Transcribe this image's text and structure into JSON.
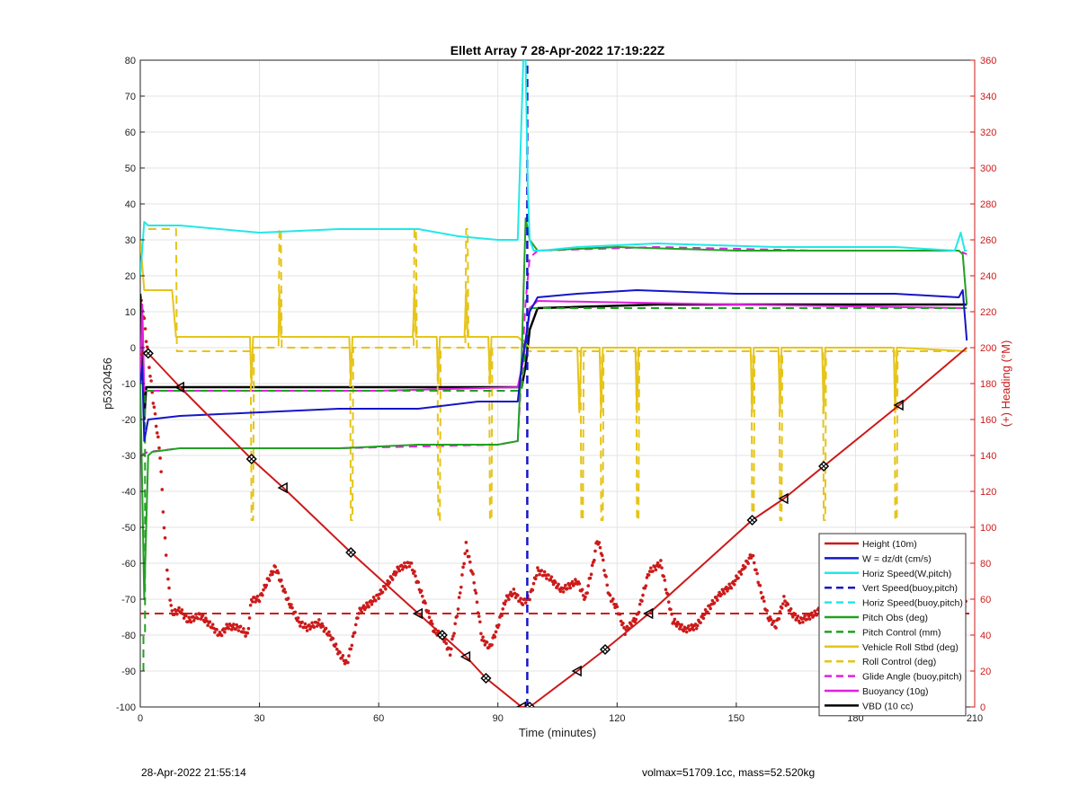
{
  "footer": {
    "timestamp": "28-Apr-2022 21:55:14",
    "summary": "volmax=51709.1cc, mass=52.520kg"
  },
  "chart_data": {
    "type": "line",
    "title": "Ellett Array 7 28-Apr-2022 17:19:22Z",
    "xlabel": "Time (minutes)",
    "ylabel": "p5320456",
    "ylabel_right": "(+) Heading (°M)",
    "xlim": [
      0,
      210
    ],
    "ylim": [
      -100,
      80
    ],
    "ylim_right": [
      0,
      360
    ],
    "xticks": [
      "0",
      "30",
      "60",
      "90",
      "120",
      "150",
      "180",
      "210"
    ],
    "yticks": [
      "-100",
      "-90",
      "-80",
      "-70",
      "-60",
      "-50",
      "-40",
      "-30",
      "-20",
      "-10",
      "0",
      "10",
      "20",
      "30",
      "40",
      "50",
      "60",
      "70",
      "80"
    ],
    "yticks_right": [
      "0",
      "20",
      "40",
      "60",
      "80",
      "100",
      "120",
      "140",
      "160",
      "180",
      "200",
      "220",
      "240",
      "260",
      "280",
      "300",
      "320",
      "340",
      "360"
    ],
    "grid": true,
    "legend_position": "bottom-right",
    "series": [
      {
        "name": "Height (10m)",
        "color": "#cc1a1a",
        "style": "solid",
        "width": 2,
        "x": [
          0,
          1.5,
          10,
          28,
          36,
          53,
          70,
          76,
          82,
          87,
          96,
          98,
          110,
          117,
          128,
          154,
          162,
          172,
          191,
          208
        ],
        "y": [
          -2,
          -1,
          -11,
          -31,
          -39,
          -57,
          -74,
          -80,
          -86,
          -92,
          -100,
          -100,
          -90,
          -84,
          -74,
          -48,
          -42,
          -33,
          -16,
          0
        ]
      },
      {
        "name": "W = dz/dt (cm/s)",
        "color": "#1515c8",
        "style": "solid",
        "width": 2,
        "x": [
          0,
          0.5,
          1,
          2,
          10,
          30,
          50,
          70,
          85,
          95,
          96,
          98,
          100,
          110,
          125,
          150,
          170,
          190,
          206,
          207,
          208
        ],
        "y": [
          -10,
          -5,
          -26,
          -20,
          -19,
          -18,
          -17,
          -17,
          -15,
          -15,
          -5,
          10,
          14,
          15,
          16,
          15,
          15,
          15,
          14,
          16,
          2
        ]
      },
      {
        "name": "Horiz Speed(W,pitch)",
        "color": "#22e8e8",
        "style": "solid",
        "width": 2,
        "x": [
          0,
          1,
          2,
          10,
          30,
          50,
          70,
          80,
          90,
          95,
          96.4,
          97,
          97.5,
          98,
          99,
          101,
          110,
          130,
          160,
          190,
          205,
          206.5,
          207.5,
          208
        ],
        "y": [
          20,
          35,
          34,
          34,
          32,
          33,
          33,
          31,
          30,
          30,
          80,
          80,
          45,
          30,
          27,
          27,
          28,
          29,
          28,
          28,
          27,
          32,
          27,
          27
        ]
      },
      {
        "name": "Vert Speed(buoy,pitch)",
        "color": "#1515c8",
        "style": "dashed",
        "width": 2.5,
        "x": [
          97.4,
          97.4
        ],
        "y": [
          -100,
          79
        ]
      },
      {
        "name": "Horiz Speed(buoy,pitch)",
        "color": "#22e8e8",
        "style": "dashed",
        "width": 2,
        "x": [],
        "y": []
      },
      {
        "name": "Pitch Obs (deg)",
        "color": "#22a022",
        "style": "solid",
        "width": 2,
        "x": [
          0,
          1,
          2,
          3,
          10,
          30,
          50,
          70,
          90,
          95,
          96,
          97,
          98,
          100,
          120,
          150,
          180,
          206,
          207,
          208
        ],
        "y": [
          -10,
          -70,
          -30,
          -29,
          -28,
          -28,
          -28,
          -27,
          -27,
          -26,
          -2,
          36,
          30,
          27,
          28,
          27,
          27,
          27,
          26,
          12
        ]
      },
      {
        "name": "Pitch Control (mm)",
        "color": "#22a022",
        "style": "dashed",
        "width": 2,
        "x": [
          0.8,
          0.8,
          1.2,
          1.2,
          10,
          90,
          96,
          97,
          98,
          100,
          208
        ],
        "y": [
          -90,
          -80,
          -80,
          -12,
          -12,
          -12,
          -12,
          0,
          11,
          11,
          11
        ]
      },
      {
        "name": "Vehicle Roll Stbd (deg)",
        "color": "#e6c419",
        "style": "solid",
        "width": 2,
        "x": [
          0,
          1,
          2,
          8,
          9,
          27.6,
          28,
          28.4,
          29,
          34.8,
          35,
          35.4,
          36,
          52.6,
          53,
          53.4,
          54,
          68.6,
          69,
          69.4,
          70,
          74.6,
          75,
          75.4,
          76,
          81.6,
          82,
          82.4,
          83,
          87.6,
          88,
          88.4,
          89,
          95,
          98,
          110,
          110.5,
          111,
          111.5,
          112,
          115.6,
          116,
          116.4,
          117,
          124.6,
          125,
          125.4,
          126,
          153.6,
          154,
          154.4,
          155,
          160.6,
          161,
          161.4,
          162,
          171.6,
          172,
          172.4,
          173,
          189.6,
          190,
          190.4,
          191,
          208
        ],
        "y": [
          30,
          16,
          16,
          16,
          3,
          3,
          -10,
          3,
          3,
          3,
          16,
          3,
          3,
          3,
          -10,
          3,
          3,
          3,
          16,
          3,
          3,
          3,
          -10,
          3,
          3,
          3,
          16,
          3,
          3,
          3,
          -10,
          3,
          3,
          3,
          0,
          0,
          -18,
          0,
          0,
          0,
          0,
          -18,
          0,
          0,
          0,
          -18,
          0,
          0,
          0,
          -18,
          0,
          0,
          0,
          -18,
          0,
          0,
          0,
          -18,
          0,
          0,
          0,
          -18,
          0,
          0,
          -1
        ]
      },
      {
        "name": "Roll Control (deg)",
        "color": "#e6c419",
        "style": "dashed",
        "width": 2,
        "x": [
          2,
          9,
          9.2,
          27.8,
          28,
          28.4,
          28.6,
          34.8,
          35,
          35.4,
          35.6,
          52.8,
          53,
          53.4,
          53.6,
          68.8,
          69,
          69.4,
          69.6,
          74.8,
          75,
          75.4,
          75.6,
          81.8,
          82,
          82.4,
          82.6,
          87.8,
          88,
          88.4,
          88.6,
          96,
          98,
          110.8,
          111,
          111.4,
          111.6,
          115.8,
          116,
          116.4,
          116.6,
          124.8,
          125,
          125.4,
          125.6,
          153.8,
          154,
          154.4,
          154.6,
          160.8,
          161,
          161.4,
          161.6,
          171.8,
          172,
          172.4,
          172.6,
          189.8,
          190,
          190.4,
          190.6,
          208
        ],
        "y": [
          33,
          33,
          -1,
          -1,
          -48,
          -48,
          0,
          0,
          33,
          33,
          0,
          0,
          -48,
          -48,
          0,
          0,
          33,
          33,
          0,
          0,
          -48,
          -48,
          0,
          0,
          33,
          33,
          0,
          0,
          -48,
          -48,
          0,
          0,
          -1,
          -1,
          -48,
          -48,
          -1,
          -1,
          -48,
          -48,
          -1,
          -1,
          -48,
          -48,
          -1,
          -1,
          -48,
          -48,
          -1,
          -1,
          -48,
          -48,
          -1,
          -1,
          -48,
          -48,
          -1,
          -1,
          -48,
          -48,
          -1,
          -1
        ]
      },
      {
        "name": "Glide Angle (buoy,pitch)",
        "color": "#e020e0",
        "style": "dashed",
        "width": 2,
        "x": [
          0,
          2,
          10,
          50,
          90,
          95,
          97,
          98,
          100,
          130,
          170,
          206,
          208
        ],
        "y": [
          -30,
          -29,
          -28,
          -28,
          -27,
          -26,
          13,
          25,
          27,
          28,
          27,
          27,
          26
        ]
      },
      {
        "name": "Buoyancy (10g)",
        "color": "#e020e0",
        "style": "solid",
        "width": 2,
        "x": [
          0,
          0.5,
          1,
          2,
          60,
          95,
          96.5,
          98,
          100,
          150,
          208
        ],
        "y": [
          -10,
          12,
          -12,
          -12,
          -12,
          -11,
          -3,
          11,
          13,
          12,
          11
        ]
      },
      {
        "name": "VBD (10 cc)",
        "color": "#000000",
        "style": "solid",
        "width": 2.5,
        "x": [
          0,
          1,
          1.5,
          2,
          95,
          96,
          97,
          98,
          100,
          130,
          208
        ],
        "y": [
          15,
          -20,
          -11,
          -11,
          -11,
          -11,
          -5,
          5,
          11,
          12,
          12
        ]
      }
    ],
    "heading": {
      "axis": "right",
      "color": "#cc1a1a",
      "mean": 52,
      "points_x": [
        0,
        1,
        2,
        3,
        5,
        6,
        7,
        8,
        10,
        12,
        15,
        18,
        20,
        22,
        25,
        27,
        28,
        30,
        32,
        34,
        35,
        37,
        40,
        42,
        45,
        48,
        50,
        52,
        53,
        55,
        58,
        60,
        62,
        65,
        68,
        70,
        72,
        74,
        76,
        78,
        80,
        82,
        84,
        86,
        88,
        90,
        92,
        94,
        96,
        98,
        100,
        103,
        106,
        110,
        112,
        114,
        115,
        116,
        117,
        118,
        120,
        122,
        125,
        128,
        131,
        134,
        137,
        140,
        143,
        146,
        149,
        152,
        154,
        156,
        158,
        160,
        162,
        164,
        166,
        170,
        174,
        177,
        180,
        183,
        186,
        189,
        192,
        195,
        198,
        200,
        203,
        206,
        208
      ],
      "points_y": [
        228,
        215,
        195,
        175,
        140,
        100,
        70,
        52,
        54,
        48,
        51,
        45,
        40,
        45,
        44,
        40,
        60,
        60,
        70,
        78,
        72,
        60,
        47,
        44,
        47,
        39,
        30,
        24,
        33,
        53,
        58,
        62,
        68,
        77,
        80,
        68,
        55,
        42,
        40,
        30,
        55,
        90,
        70,
        38,
        33,
        45,
        60,
        64,
        58,
        61,
        76,
        72,
        65,
        70,
        60,
        80,
        93,
        87,
        74,
        62,
        55,
        42,
        50,
        75,
        80,
        48,
        43,
        45,
        55,
        63,
        68,
        78,
        85,
        66,
        50,
        45,
        60,
        52,
        48,
        52,
        62,
        54,
        52,
        47,
        51,
        54,
        56,
        48,
        56,
        59,
        51,
        41,
        60
      ]
    },
    "markers": {
      "color": "#000000",
      "x": [
        2,
        10,
        28,
        36,
        53,
        70,
        76,
        82,
        87,
        96,
        98,
        110,
        117,
        128,
        154,
        162,
        172,
        191
      ]
    }
  }
}
